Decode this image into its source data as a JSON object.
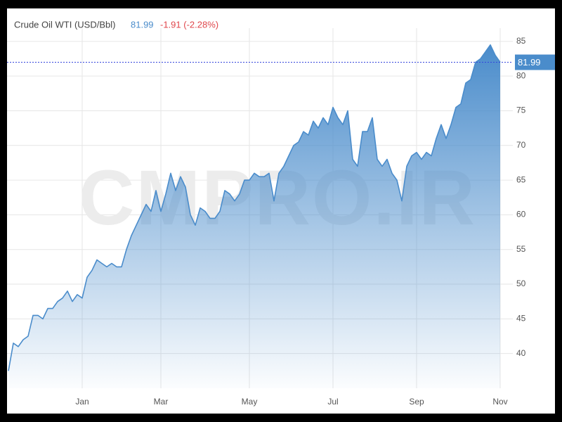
{
  "chart_data": {
    "type": "area",
    "title": "Crude Oil WTI (USD/Bbl)",
    "change": "-1.91 (-2.28%)",
    "watermark": "CMPRO.IR",
    "categories": [
      null,
      null,
      null,
      null,
      null,
      null,
      null,
      null,
      null,
      null,
      null,
      null,
      null,
      null,
      null,
      "Jan",
      null,
      null,
      null,
      null,
      null,
      null,
      null,
      null,
      null,
      null,
      null,
      null,
      null,
      null,
      null,
      "Mar",
      null,
      null,
      null,
      null,
      null,
      null,
      null,
      null,
      null,
      null,
      null,
      null,
      null,
      null,
      null,
      null,
      null,
      "May",
      null,
      null,
      null,
      null,
      null,
      null,
      null,
      null,
      null,
      null,
      null,
      null,
      null,
      null,
      null,
      null,
      "Jul",
      null,
      null,
      null,
      null,
      null,
      null,
      null,
      null,
      null,
      null,
      null,
      null,
      null,
      null,
      null,
      null,
      "Sep",
      null,
      null,
      null,
      null,
      null,
      null,
      null,
      null,
      null,
      null,
      null,
      null,
      null,
      null,
      null,
      null,
      "Nov"
    ],
    "series": [
      {
        "name": "Crude Oil WTI",
        "color": "#4a8ccb",
        "values": [
          37.5,
          41.5,
          41,
          42,
          42.5,
          45.5,
          45.5,
          45,
          46.5,
          46.5,
          47.5,
          48,
          49,
          47.5,
          48.5,
          48,
          51,
          52,
          53.5,
          53,
          52.5,
          53,
          52.5,
          52.5,
          55,
          57,
          58.5,
          60,
          61.5,
          60.5,
          63.5,
          60.5,
          63,
          66,
          63.5,
          65.5,
          64,
          60,
          58.5,
          61,
          60.5,
          59.5,
          59.5,
          60.5,
          63.5,
          63,
          62,
          63,
          65,
          65,
          66,
          65.5,
          65.5,
          66,
          62,
          66,
          67,
          68.5,
          70,
          70.5,
          72,
          71.5,
          73.5,
          72.5,
          74,
          73,
          75.5,
          74,
          73,
          75,
          68,
          67,
          72,
          72,
          74,
          68,
          67,
          68,
          66,
          65,
          62,
          67,
          68.5,
          69,
          68,
          69,
          68.5,
          71,
          73,
          71,
          73,
          75.5,
          76,
          79,
          79.5,
          82,
          82.5,
          83.5,
          84.5,
          83,
          81.99
        ]
      }
    ],
    "ylim": [
      35,
      86
    ],
    "yticks": [
      40,
      45,
      50,
      55,
      60,
      65,
      70,
      75,
      80,
      85
    ],
    "grid": true,
    "y_axis_side": "right"
  }
}
